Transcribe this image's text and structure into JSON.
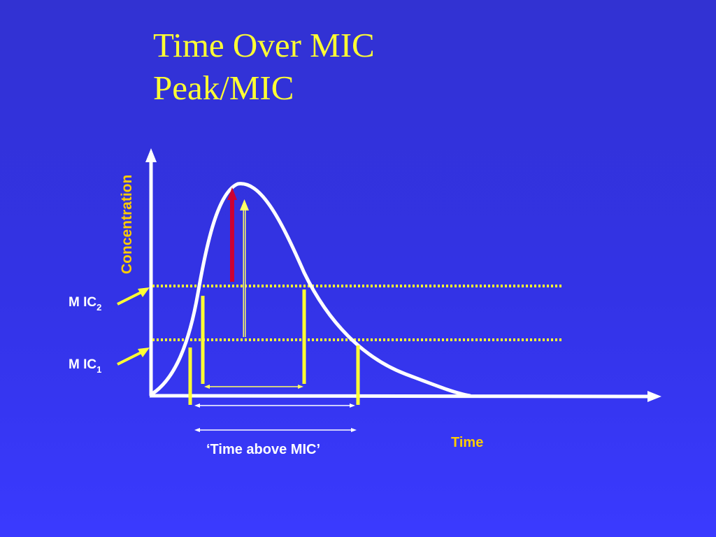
{
  "title": {
    "line1": "Time Over MIC",
    "line2": "Peak/MIC"
  },
  "diagram": {
    "y_axis_label": "Concentration",
    "x_axis_label": "Time",
    "mic2_label": {
      "prefix": "M IC",
      "subscript": "2"
    },
    "mic1_label": {
      "prefix": "M IC",
      "subscript": "1"
    },
    "time_above_mic_label": "‘Time above MIC’"
  },
  "colors": {
    "background": "#3333e6",
    "title": "#ffff33",
    "curve": "#ffffff",
    "axes": "#ffffff",
    "mic_lines": "#ffff33",
    "axis_labels": "#ffcc00",
    "peak_arrow_red": "#cc0033",
    "peak_arrow_yellow": "#ffff66"
  }
}
